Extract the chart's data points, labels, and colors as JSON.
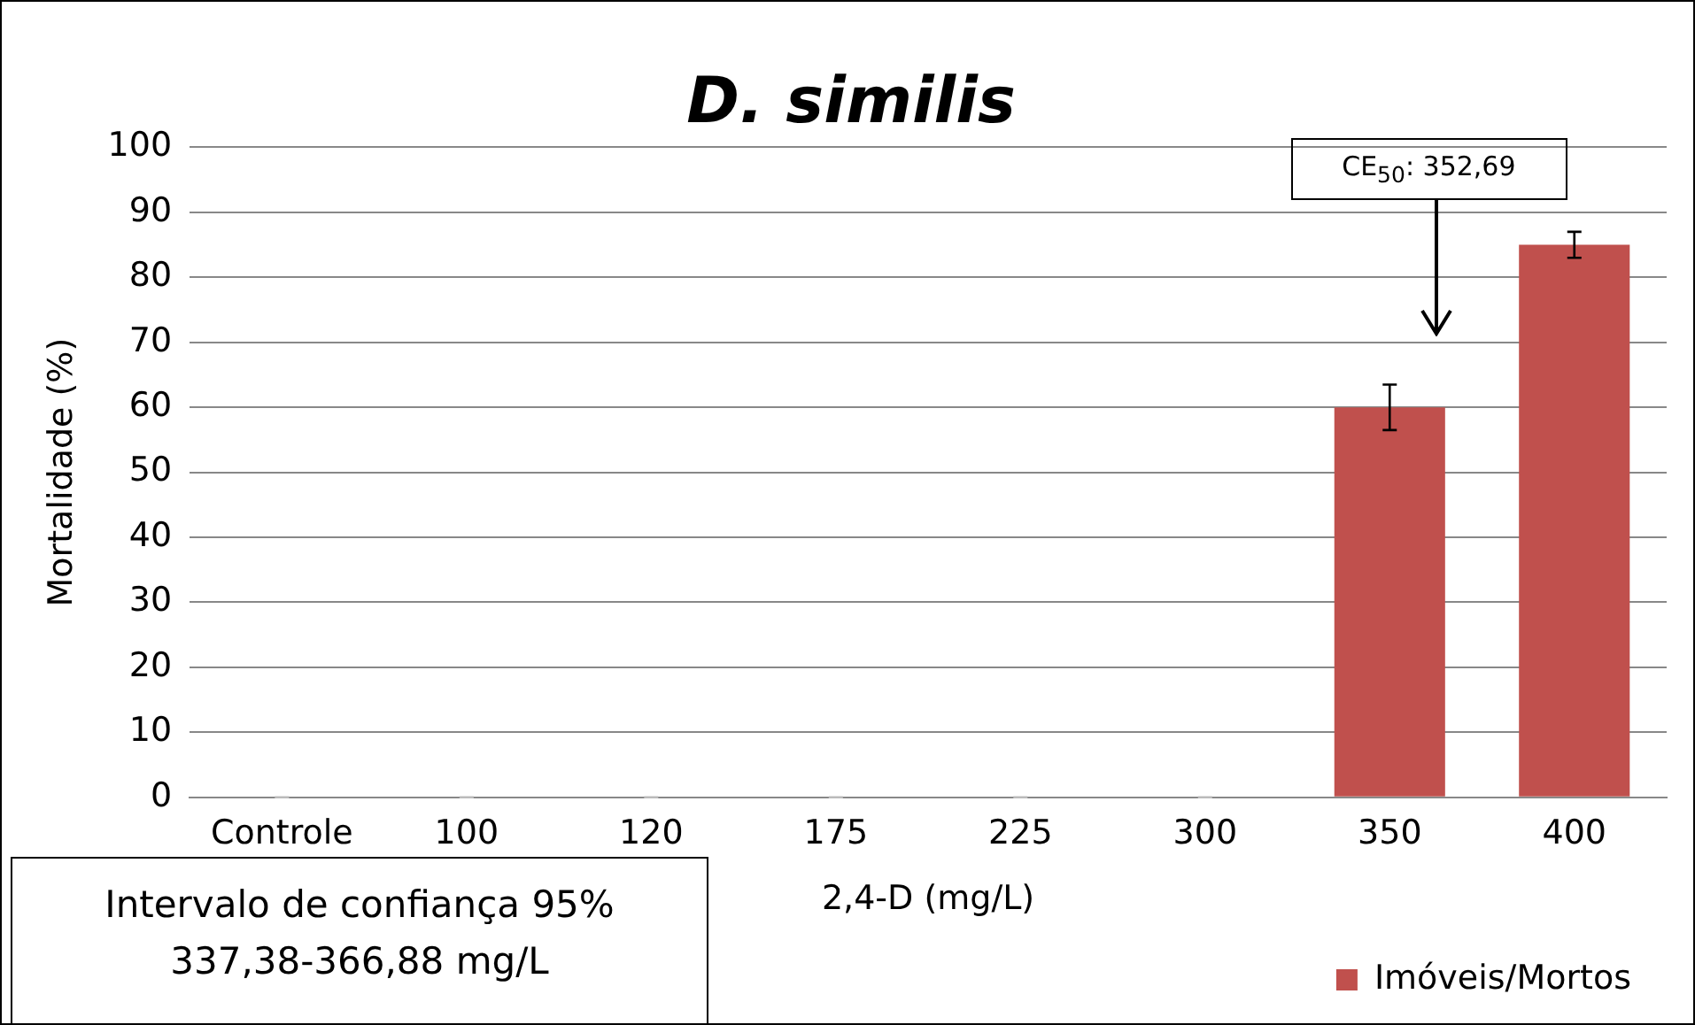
{
  "chart_data": {
    "type": "bar",
    "title": "D. similis",
    "xlabel": "2,4-D (mg/L)",
    "ylabel": "Mortalidade (%)",
    "categories": [
      "Controle",
      "100",
      "120",
      "175",
      "225",
      "300",
      "350",
      "400"
    ],
    "series": [
      {
        "name": "Imóveis/Mortos",
        "color": "#c0504d",
        "values": [
          0,
          0,
          0,
          0,
          0,
          0,
          60,
          85
        ],
        "errors": [
          0,
          0,
          0,
          0,
          0,
          0,
          3.5,
          2
        ]
      }
    ],
    "ylim": [
      0,
      100
    ],
    "yticks": [
      0,
      10,
      20,
      30,
      40,
      50,
      60,
      70,
      80,
      90,
      100
    ],
    "grid": "y",
    "legend": "bottom right",
    "annotations": [
      "CE$_{50}$: 352,69",
      "Intervalo de confiança 95%\n337,38-366,88 mg/L"
    ]
  }
}
